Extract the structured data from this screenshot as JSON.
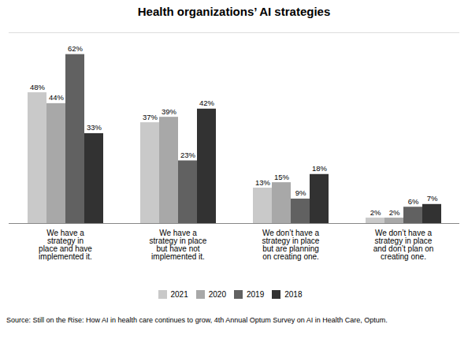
{
  "chart_data": {
    "type": "bar",
    "title": "Health organizations’ AI strategies",
    "categories": [
      "We have a\nstrategy in\nplace and have\nimplemented it.",
      "We have a\nstrategy in place\nbut have not\nimplemented it.",
      "We don’t have a\nstrategy in place\nbut are planning\non creating one.",
      "We don’t have a\nstrategy in place\nand don’t plan on\ncreating one."
    ],
    "series": [
      {
        "name": "2021",
        "color": "#c9c9c9",
        "values": [
          48,
          37,
          13,
          2
        ],
        "value_labels": [
          "48%",
          "37%",
          "13%",
          "2%"
        ]
      },
      {
        "name": "2020",
        "color": "#a8a8a8",
        "values": [
          44,
          39,
          15,
          2
        ],
        "value_labels": [
          "44%",
          "39%",
          "15%",
          "2%"
        ]
      },
      {
        "name": "2019",
        "color": "#616161",
        "values": [
          62,
          23,
          9,
          6
        ],
        "value_labels": [
          "62%",
          "23%",
          "9%",
          "6%"
        ]
      },
      {
        "name": "2018",
        "color": "#323232",
        "values": [
          33,
          42,
          18,
          7
        ],
        "value_labels": [
          "33%",
          "42%",
          "18%",
          "7%"
        ]
      }
    ],
    "ylim": [
      0,
      70
    ],
    "tick_labels": "x",
    "data_labels": true,
    "legend": "bottom",
    "grid": false,
    "caption": "Source: Still on the Rise: How AI in health care continues to grow, 4th Annual Optum Survey on AI in Health Care, Optum."
  }
}
